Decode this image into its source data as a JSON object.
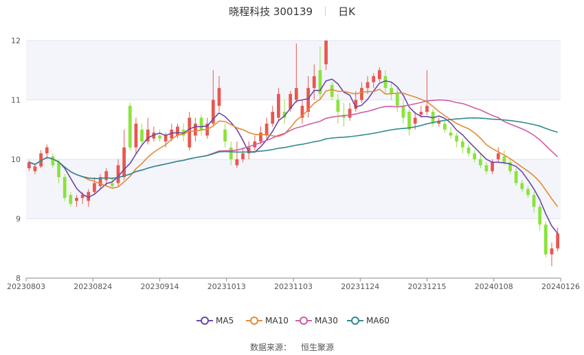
{
  "header": {
    "title": "晓程科技 300139",
    "period": "日K"
  },
  "source": {
    "label": "数据来源：",
    "value": "恒生聚源"
  },
  "colors": {
    "up": "#e8574f",
    "down": "#8be33b",
    "grid": "#dfe3f0",
    "band": "#f4f5fb",
    "ma5": "#6a45a8",
    "ma10": "#e08b34",
    "ma30": "#d05aa6",
    "ma60": "#2f8a8c"
  },
  "chart_data": {
    "type": "candlestick",
    "ylim": [
      8,
      12
    ],
    "yticks": [
      "8",
      "9",
      "10",
      "11",
      "12"
    ],
    "xticks": [
      "20230803",
      "20230824",
      "20230914",
      "20231013",
      "20231103",
      "20231124",
      "20231215",
      "20240108",
      "20240126"
    ],
    "legend": [
      "MA5",
      "MA10",
      "MA30",
      "MA60"
    ],
    "candles": [
      [
        9.85,
        9.95,
        9.8,
        9.98
      ],
      [
        9.8,
        9.88,
        9.75,
        9.92
      ],
      [
        9.88,
        10.1,
        9.85,
        10.15
      ],
      [
        10.1,
        10.2,
        10.0,
        10.25
      ],
      [
        10.05,
        9.9,
        9.85,
        10.1
      ],
      [
        9.95,
        9.7,
        9.6,
        10.0
      ],
      [
        9.7,
        9.35,
        9.3,
        9.75
      ],
      [
        9.4,
        9.25,
        9.2,
        9.45
      ],
      [
        9.3,
        9.35,
        9.2,
        9.4
      ],
      [
        9.35,
        9.4,
        9.25,
        9.45
      ],
      [
        9.3,
        9.45,
        9.2,
        9.5
      ],
      [
        9.45,
        9.6,
        9.4,
        9.7
      ],
      [
        9.55,
        9.7,
        9.5,
        9.75
      ],
      [
        9.65,
        9.8,
        9.55,
        9.85
      ],
      [
        9.6,
        9.55,
        9.5,
        9.7
      ],
      [
        9.6,
        9.9,
        9.55,
        10.0
      ],
      [
        9.7,
        10.2,
        9.65,
        10.5
      ],
      [
        10.9,
        10.2,
        10.15,
        10.95
      ],
      [
        10.2,
        10.6,
        10.1,
        10.7
      ],
      [
        10.5,
        10.3,
        10.25,
        10.6
      ],
      [
        10.3,
        10.5,
        10.25,
        10.7
      ],
      [
        10.35,
        10.45,
        10.3,
        10.55
      ],
      [
        10.4,
        10.35,
        10.3,
        10.5
      ],
      [
        10.3,
        10.4,
        10.2,
        10.45
      ],
      [
        10.35,
        10.5,
        10.3,
        10.6
      ],
      [
        10.4,
        10.55,
        10.35,
        10.6
      ],
      [
        10.5,
        10.4,
        10.3,
        10.6
      ],
      [
        10.2,
        10.7,
        10.15,
        10.8
      ],
      [
        10.4,
        10.6,
        10.3,
        10.7
      ],
      [
        10.7,
        10.5,
        10.4,
        10.75
      ],
      [
        10.4,
        10.6,
        10.35,
        10.7
      ],
      [
        10.6,
        11.0,
        10.55,
        11.5
      ],
      [
        10.9,
        11.2,
        10.8,
        11.4
      ],
      [
        10.5,
        10.3,
        10.2,
        10.6
      ],
      [
        10.2,
        10.0,
        9.9,
        10.3
      ],
      [
        9.9,
        10.0,
        9.85,
        10.3
      ],
      [
        10.0,
        10.1,
        9.95,
        10.2
      ],
      [
        10.1,
        10.2,
        10.0,
        10.3
      ],
      [
        10.2,
        10.3,
        10.15,
        10.4
      ],
      [
        10.3,
        10.45,
        10.25,
        10.55
      ],
      [
        10.4,
        10.6,
        10.35,
        10.7
      ],
      [
        10.6,
        10.8,
        10.55,
        10.9
      ],
      [
        10.7,
        11.1,
        10.65,
        11.2
      ],
      [
        10.8,
        10.7,
        10.6,
        11.0
      ],
      [
        10.85,
        11.1,
        10.8,
        11.15
      ],
      [
        11.0,
        11.2,
        10.95,
        11.95
      ],
      [
        10.7,
        10.9,
        10.6,
        11.0
      ],
      [
        10.8,
        11.2,
        10.7,
        11.4
      ],
      [
        11.2,
        11.4,
        11.0,
        11.6
      ],
      [
        11.5,
        11.1,
        11.0,
        11.9
      ],
      [
        11.6,
        12.0,
        11.5,
        12.0
      ],
      [
        11.25,
        11.05,
        11.0,
        11.3
      ],
      [
        11.0,
        10.8,
        10.6,
        11.1
      ],
      [
        10.75,
        10.7,
        10.55,
        10.95
      ],
      [
        10.7,
        10.85,
        10.65,
        10.95
      ],
      [
        10.85,
        11.0,
        10.8,
        11.15
      ],
      [
        11.0,
        11.2,
        10.95,
        11.3
      ],
      [
        11.2,
        11.3,
        11.1,
        11.4
      ],
      [
        11.3,
        11.4,
        11.2,
        11.45
      ],
      [
        11.35,
        11.5,
        11.3,
        11.55
      ],
      [
        11.4,
        11.2,
        11.1,
        11.5
      ],
      [
        11.2,
        11.1,
        11.0,
        11.3
      ],
      [
        11.1,
        10.9,
        10.8,
        11.2
      ],
      [
        10.9,
        10.7,
        10.6,
        11.0
      ],
      [
        10.8,
        10.5,
        10.4,
        10.85
      ],
      [
        10.6,
        10.7,
        10.5,
        10.8
      ],
      [
        10.75,
        10.8,
        10.7,
        10.9
      ],
      [
        10.8,
        10.9,
        10.75,
        11.5
      ],
      [
        10.8,
        10.6,
        10.55,
        10.85
      ],
      [
        10.6,
        10.65,
        10.55,
        10.7
      ],
      [
        10.6,
        10.5,
        10.45,
        10.65
      ],
      [
        10.45,
        10.4,
        10.35,
        10.55
      ],
      [
        10.4,
        10.3,
        10.2,
        10.45
      ],
      [
        10.3,
        10.2,
        10.1,
        10.35
      ],
      [
        10.2,
        10.1,
        10.05,
        10.25
      ],
      [
        10.1,
        10.0,
        9.95,
        10.15
      ],
      [
        10.0,
        9.9,
        9.85,
        10.1
      ],
      [
        9.9,
        9.8,
        9.75,
        9.95
      ],
      [
        9.8,
        9.95,
        9.75,
        10.0
      ],
      [
        10.0,
        10.1,
        9.95,
        10.2
      ],
      [
        10.05,
        9.95,
        9.9,
        10.15
      ],
      [
        9.95,
        9.8,
        9.75,
        10.0
      ],
      [
        9.8,
        9.6,
        9.55,
        9.85
      ],
      [
        9.6,
        9.5,
        9.45,
        9.65
      ],
      [
        9.5,
        9.4,
        9.35,
        9.55
      ],
      [
        9.4,
        9.2,
        9.1,
        9.45
      ],
      [
        9.2,
        8.9,
        8.8,
        9.25
      ],
      [
        8.9,
        8.4,
        8.35,
        8.95
      ],
      [
        8.4,
        8.5,
        8.2,
        8.6
      ],
      [
        8.5,
        8.75,
        8.45,
        8.85
      ]
    ]
  }
}
